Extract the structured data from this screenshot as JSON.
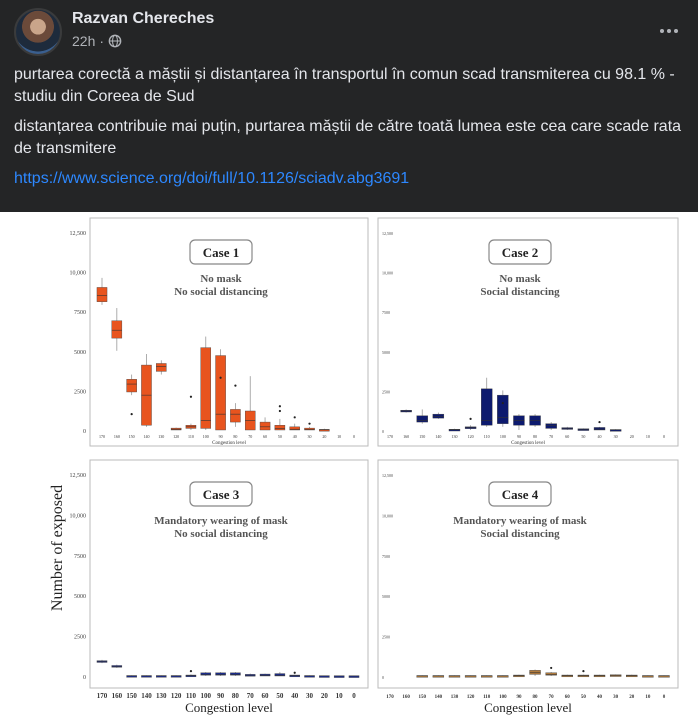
{
  "post": {
    "author": "Razvan Chereches",
    "time": "22h",
    "paragraph1": "purtarea corectă a măștii și distanțarea în transportul în comun scad transmiterea cu 98.1 % - studiu din Coreea de Sud",
    "paragraph2": "distanțarea contribuie mai puțin, purtarea măștii de către toată lumea este cea care scade rata de transmitere",
    "link": "https://www.science.org/doi/full/10.1126/sciadv.abg3691"
  },
  "icons": {
    "audience": "globe-icon",
    "more": "more-options-icon"
  },
  "colors": {
    "case1": "#e8541e",
    "case2": "#0d1a6e",
    "case3": "#1c2c8c",
    "case4": "#b07a3c",
    "link": "#2d88ff"
  },
  "chart_data": {
    "type": "boxplot",
    "ylabel": "Number of exposed",
    "xlabel": "Congestion level",
    "categories": [
      170,
      160,
      150,
      140,
      130,
      120,
      110,
      100,
      90,
      80,
      70,
      60,
      50,
      40,
      30,
      20,
      10,
      0
    ],
    "category_labels": [
      "170",
      "160",
      "150",
      "140",
      "130",
      "120",
      "110",
      "100",
      "90",
      "80",
      "70",
      "60",
      "50",
      "40",
      "30",
      "20",
      "10",
      "0"
    ],
    "ylim": [
      0,
      12500
    ],
    "yticks_top": [
      {
        "v": 0,
        "label": "0"
      },
      {
        "v": 2500,
        "label": "2500"
      },
      {
        "v": 5000,
        "label": "5000"
      },
      {
        "v": 7500,
        "label": "7500"
      },
      {
        "v": 10000,
        "label": "10,000"
      },
      {
        "v": 12500,
        "label": "12,500"
      }
    ],
    "yticks_bottom": [
      {
        "v": 0,
        "label": "0"
      },
      {
        "v": 2500,
        "label": "2500"
      },
      {
        "v": 5000,
        "label": "5000"
      },
      {
        "v": 7500,
        "label": "7500"
      },
      {
        "v": 10000,
        "label": "10,000"
      },
      {
        "v": 12500,
        "label": "12,500"
      }
    ],
    "panel_xlabel_small": "Congestion level",
    "panels": [
      {
        "title": "Case 1",
        "line1": "No mask",
        "line2": "No social distancing",
        "color": "#e8541e",
        "boxes": [
          {
            "x": 170,
            "lo": 7900,
            "q1": 8100,
            "med": 8500,
            "q3": 9000,
            "hi": 9600
          },
          {
            "x": 160,
            "lo": 5000,
            "q1": 5800,
            "med": 6300,
            "q3": 6900,
            "hi": 7700
          },
          {
            "x": 150,
            "lo": 2200,
            "q1": 2400,
            "med": 2900,
            "q3": 3200,
            "hi": 3500,
            "out": [
              1000
            ]
          },
          {
            "x": 140,
            "lo": 200,
            "q1": 300,
            "med": 2200,
            "q3": 4100,
            "hi": 4800
          },
          {
            "x": 130,
            "lo": 3500,
            "q1": 3700,
            "med": 4000,
            "q3": 4200,
            "hi": 4400
          },
          {
            "x": 120,
            "lo": 0,
            "q1": 0,
            "med": 50,
            "q3": 120,
            "hi": 150
          },
          {
            "x": 110,
            "lo": 0,
            "q1": 100,
            "med": 200,
            "q3": 300,
            "hi": 400,
            "out": [
              2100
            ]
          },
          {
            "x": 100,
            "lo": 0,
            "q1": 100,
            "med": 600,
            "q3": 5200,
            "hi": 5900
          },
          {
            "x": 90,
            "lo": 0,
            "q1": 0,
            "med": 1000,
            "q3": 4700,
            "hi": 5100,
            "out": [
              3300
            ]
          },
          {
            "x": 80,
            "lo": 200,
            "q1": 500,
            "med": 1000,
            "q3": 1300,
            "hi": 1700,
            "out": [
              2800
            ]
          },
          {
            "x": 70,
            "lo": 0,
            "q1": 0,
            "med": 600,
            "q3": 1200,
            "hi": 3400
          },
          {
            "x": 60,
            "lo": 0,
            "q1": 0,
            "med": 200,
            "q3": 500,
            "hi": 800
          },
          {
            "x": 50,
            "lo": 0,
            "q1": 0,
            "med": 100,
            "q3": 300,
            "hi": 700,
            "out": [
              1200,
              1500
            ]
          },
          {
            "x": 40,
            "lo": 0,
            "q1": 0,
            "med": 50,
            "q3": 200,
            "hi": 400,
            "out": [
              800
            ]
          },
          {
            "x": 30,
            "lo": 0,
            "q1": 0,
            "med": 30,
            "q3": 120,
            "hi": 200,
            "out": [
              400
            ]
          },
          {
            "x": 20,
            "lo": 0,
            "q1": 0,
            "med": 10,
            "q3": 40,
            "hi": 80
          }
        ]
      },
      {
        "title": "Case 2",
        "line1": "No mask",
        "line2": "Social distancing",
        "color": "#0d1a6e",
        "boxes": [
          {
            "x": 160,
            "lo": 1100,
            "q1": 1150,
            "med": 1200,
            "q3": 1250,
            "hi": 1300
          },
          {
            "x": 150,
            "lo": 400,
            "q1": 500,
            "med": 600,
            "q3": 900,
            "hi": 1300
          },
          {
            "x": 140,
            "lo": 700,
            "q1": 750,
            "med": 850,
            "q3": 1000,
            "hi": 1100
          },
          {
            "x": 130,
            "lo": 0,
            "q1": 0,
            "med": 20,
            "q3": 50,
            "hi": 80
          },
          {
            "x": 120,
            "lo": 0,
            "q1": 100,
            "med": 150,
            "q3": 200,
            "hi": 300,
            "out": [
              700
            ]
          },
          {
            "x": 110,
            "lo": 200,
            "q1": 300,
            "med": 600,
            "q3": 2600,
            "hi": 3300
          },
          {
            "x": 100,
            "lo": 200,
            "q1": 400,
            "med": 800,
            "q3": 2200,
            "hi": 2500,
            "out": [
              1700
            ]
          },
          {
            "x": 90,
            "lo": 0,
            "q1": 300,
            "med": 600,
            "q3": 900,
            "hi": 1000
          },
          {
            "x": 80,
            "lo": 200,
            "q1": 300,
            "med": 600,
            "q3": 900,
            "hi": 1000
          },
          {
            "x": 70,
            "lo": 0,
            "q1": 100,
            "med": 300,
            "q3": 400,
            "hi": 500
          },
          {
            "x": 60,
            "lo": 0,
            "q1": 50,
            "med": 100,
            "q3": 150,
            "hi": 200
          },
          {
            "x": 50,
            "lo": 0,
            "q1": 0,
            "med": 30,
            "q3": 80,
            "hi": 100
          },
          {
            "x": 40,
            "lo": 0,
            "q1": 0,
            "med": 60,
            "q3": 160,
            "hi": 200,
            "out": [
              500
            ]
          },
          {
            "x": 30,
            "lo": 0,
            "q1": 0,
            "med": 10,
            "q3": 30,
            "hi": 50
          }
        ]
      },
      {
        "title": "Case 3",
        "line1": "Mandatory wearing of mask",
        "line2": "No social distancing",
        "color": "#1c2c8c",
        "boxes": [
          {
            "x": 170,
            "lo": 800,
            "q1": 850,
            "med": 900,
            "q3": 950,
            "hi": 1000
          },
          {
            "x": 160,
            "lo": 500,
            "q1": 550,
            "med": 600,
            "q3": 650,
            "hi": 700
          },
          {
            "x": 150,
            "lo": 0,
            "q1": 0,
            "med": 10,
            "q3": 30,
            "hi": 40
          },
          {
            "x": 140,
            "lo": 0,
            "q1": 0,
            "med": 10,
            "q3": 30,
            "hi": 40
          },
          {
            "x": 130,
            "lo": 0,
            "q1": 0,
            "med": 10,
            "q3": 30,
            "hi": 40
          },
          {
            "x": 120,
            "lo": 0,
            "q1": 0,
            "med": 10,
            "q3": 30,
            "hi": 40
          },
          {
            "x": 110,
            "lo": 0,
            "q1": 0,
            "med": 20,
            "q3": 60,
            "hi": 100,
            "out": [
              300
            ]
          },
          {
            "x": 100,
            "lo": 0,
            "q1": 50,
            "med": 100,
            "q3": 200,
            "hi": 250
          },
          {
            "x": 90,
            "lo": 0,
            "q1": 50,
            "med": 100,
            "q3": 200,
            "hi": 250
          },
          {
            "x": 80,
            "lo": 0,
            "q1": 50,
            "med": 100,
            "q3": 200,
            "hi": 250
          },
          {
            "x": 70,
            "lo": 0,
            "q1": 0,
            "med": 50,
            "q3": 100,
            "hi": 150
          },
          {
            "x": 60,
            "lo": 0,
            "q1": 0,
            "med": 50,
            "q3": 120,
            "hi": 150
          },
          {
            "x": 50,
            "lo": 0,
            "q1": 0,
            "med": 50,
            "q3": 150,
            "hi": 250
          },
          {
            "x": 40,
            "lo": 0,
            "q1": 0,
            "med": 20,
            "q3": 60,
            "hi": 80,
            "out": [
              200
            ]
          },
          {
            "x": 30,
            "lo": 0,
            "q1": 0,
            "med": 10,
            "q3": 30,
            "hi": 40
          },
          {
            "x": 20,
            "lo": 0,
            "q1": 0,
            "med": 10,
            "q3": 20,
            "hi": 30
          },
          {
            "x": 10,
            "lo": 0,
            "q1": 0,
            "med": 5,
            "q3": 15,
            "hi": 20
          },
          {
            "x": 0,
            "lo": 0,
            "q1": 0,
            "med": 5,
            "q3": 15,
            "hi": 20
          }
        ]
      },
      {
        "title": "Case 4",
        "line1": "Mandatory wearing of mask",
        "line2": "Social distancing",
        "color": "#b07a3c",
        "boxes": [
          {
            "x": 150,
            "lo": 0,
            "q1": 0,
            "med": 10,
            "q3": 30,
            "hi": 40
          },
          {
            "x": 140,
            "lo": 0,
            "q1": 0,
            "med": 10,
            "q3": 30,
            "hi": 40
          },
          {
            "x": 130,
            "lo": 0,
            "q1": 0,
            "med": 10,
            "q3": 30,
            "hi": 40
          },
          {
            "x": 120,
            "lo": 0,
            "q1": 0,
            "med": 10,
            "q3": 30,
            "hi": 40
          },
          {
            "x": 110,
            "lo": 0,
            "q1": 0,
            "med": 10,
            "q3": 30,
            "hi": 40
          },
          {
            "x": 100,
            "lo": 0,
            "q1": 0,
            "med": 10,
            "q3": 30,
            "hi": 40
          },
          {
            "x": 90,
            "lo": 0,
            "q1": 0,
            "med": 20,
            "q3": 60,
            "hi": 80
          },
          {
            "x": 80,
            "lo": 0,
            "q1": 100,
            "med": 200,
            "q3": 350,
            "hi": 400
          },
          {
            "x": 70,
            "lo": 0,
            "q1": 50,
            "med": 100,
            "q3": 200,
            "hi": 250,
            "out": [
              500
            ]
          },
          {
            "x": 60,
            "lo": 0,
            "q1": 0,
            "med": 20,
            "q3": 60,
            "hi": 80
          },
          {
            "x": 50,
            "lo": 0,
            "q1": 0,
            "med": 20,
            "q3": 60,
            "hi": 80,
            "out": [
              300
            ]
          },
          {
            "x": 40,
            "lo": 0,
            "q1": 0,
            "med": 20,
            "q3": 60,
            "hi": 80
          },
          {
            "x": 30,
            "lo": 0,
            "q1": 0,
            "med": 30,
            "q3": 80,
            "hi": 100
          },
          {
            "x": 20,
            "lo": 0,
            "q1": 0,
            "med": 20,
            "q3": 60,
            "hi": 80
          },
          {
            "x": 10,
            "lo": 0,
            "q1": 0,
            "med": 10,
            "q3": 30,
            "hi": 40
          },
          {
            "x": 0,
            "lo": 0,
            "q1": 0,
            "med": 10,
            "q3": 30,
            "hi": 40
          }
        ]
      }
    ]
  }
}
